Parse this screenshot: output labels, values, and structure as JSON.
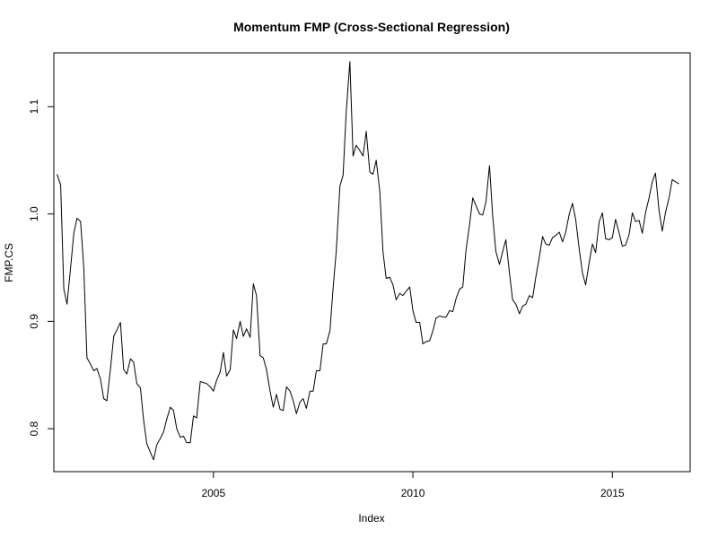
{
  "chart_data": {
    "type": "line",
    "title": "Momentum FMP (Cross-Sectional Regression)",
    "xlabel": "Index",
    "ylabel": "FMP.CS",
    "xlim": [
      2001.0,
      2016.95
    ],
    "ylim": [
      0.76,
      1.15
    ],
    "x_ticks": [
      2005,
      2010,
      2015
    ],
    "x_tick_labels": [
      "2005",
      "2010",
      "2015"
    ],
    "y_ticks": [
      0.8,
      0.9,
      1.0,
      1.1
    ],
    "y_tick_labels": [
      "0.8",
      "0.9",
      "1.0",
      "1.1"
    ],
    "grid": false,
    "legend": "none",
    "line_color": "#000000",
    "series": [
      {
        "x": [
          2001.08,
          2001.17,
          2001.25,
          2001.33,
          2001.42,
          2001.5,
          2001.58,
          2001.67,
          2001.75,
          2001.83,
          2001.92,
          2002.0,
          2002.08,
          2002.17,
          2002.25,
          2002.33,
          2002.42,
          2002.5,
          2002.58,
          2002.67,
          2002.75,
          2002.83,
          2002.92,
          2003.0,
          2003.08,
          2003.17,
          2003.25,
          2003.33,
          2003.42,
          2003.5,
          2003.58,
          2003.67,
          2003.75,
          2003.83,
          2003.92,
          2004.0,
          2004.08,
          2004.17,
          2004.25,
          2004.33,
          2004.42,
          2004.5,
          2004.58,
          2004.67,
          2004.75,
          2004.83,
          2004.92,
          2005.0,
          2005.08,
          2005.17,
          2005.25,
          2005.33,
          2005.42,
          2005.5,
          2005.58,
          2005.67,
          2005.75,
          2005.83,
          2005.92,
          2006.0,
          2006.08,
          2006.17,
          2006.25,
          2006.33,
          2006.42,
          2006.5,
          2006.58,
          2006.67,
          2006.75,
          2006.83,
          2006.92,
          2007.0,
          2007.08,
          2007.17,
          2007.25,
          2007.33,
          2007.42,
          2007.5,
          2007.58,
          2007.67,
          2007.75,
          2007.83,
          2007.92,
          2008.0,
          2008.08,
          2008.17,
          2008.25,
          2008.33,
          2008.42,
          2008.5,
          2008.58,
          2008.67,
          2008.75,
          2008.83,
          2008.92,
          2009.0,
          2009.08,
          2009.17,
          2009.25,
          2009.33,
          2009.42,
          2009.5,
          2009.58,
          2009.67,
          2009.75,
          2009.83,
          2009.92,
          2010.0,
          2010.08,
          2010.17,
          2010.25,
          2010.33,
          2010.42,
          2010.5,
          2010.58,
          2010.67,
          2010.75,
          2010.83,
          2010.92,
          2011.0,
          2011.08,
          2011.17,
          2011.25,
          2011.33,
          2011.42,
          2011.5,
          2011.58,
          2011.67,
          2011.75,
          2011.83,
          2011.92,
          2012.0,
          2012.08,
          2012.17,
          2012.25,
          2012.33,
          2012.42,
          2012.5,
          2012.58,
          2012.67,
          2012.75,
          2012.83,
          2012.92,
          2013.0,
          2013.08,
          2013.17,
          2013.25,
          2013.33,
          2013.42,
          2013.5,
          2013.58,
          2013.67,
          2013.75,
          2013.83,
          2013.92,
          2014.0,
          2014.08,
          2014.17,
          2014.25,
          2014.33,
          2014.42,
          2014.5,
          2014.58,
          2014.67,
          2014.75,
          2014.83,
          2014.92,
          2015.0,
          2015.08,
          2015.17,
          2015.25,
          2015.33,
          2015.42,
          2015.5,
          2015.58,
          2015.67,
          2015.75,
          2015.83,
          2015.92,
          2016.0,
          2016.08,
          2016.17,
          2016.25,
          2016.33,
          2016.42,
          2016.5,
          2016.58,
          2016.67
        ],
        "values": [
          1.037,
          1.027,
          0.93,
          0.916,
          0.95,
          0.982,
          0.996,
          0.993,
          0.95,
          0.866,
          0.86,
          0.854,
          0.856,
          0.846,
          0.828,
          0.826,
          0.856,
          0.886,
          0.892,
          0.899,
          0.855,
          0.851,
          0.865,
          0.862,
          0.842,
          0.838,
          0.808,
          0.786,
          0.778,
          0.771,
          0.785,
          0.791,
          0.797,
          0.809,
          0.82,
          0.817,
          0.8,
          0.792,
          0.793,
          0.787,
          0.787,
          0.812,
          0.81,
          0.844,
          0.843,
          0.842,
          0.839,
          0.835,
          0.845,
          0.853,
          0.871,
          0.849,
          0.855,
          0.892,
          0.884,
          0.9,
          0.886,
          0.893,
          0.885,
          0.935,
          0.924,
          0.868,
          0.866,
          0.855,
          0.835,
          0.82,
          0.832,
          0.818,
          0.817,
          0.839,
          0.835,
          0.826,
          0.814,
          0.825,
          0.828,
          0.819,
          0.835,
          0.835,
          0.854,
          0.854,
          0.879,
          0.879,
          0.891,
          0.931,
          0.966,
          1.026,
          1.036,
          1.096,
          1.142,
          1.054,
          1.064,
          1.059,
          1.054,
          1.077,
          1.039,
          1.037,
          1.05,
          1.021,
          0.965,
          0.94,
          0.941,
          0.934,
          0.92,
          0.926,
          0.924,
          0.928,
          0.932,
          0.91,
          0.899,
          0.899,
          0.879,
          0.881,
          0.882,
          0.891,
          0.903,
          0.905,
          0.904,
          0.904,
          0.91,
          0.909,
          0.921,
          0.93,
          0.932,
          0.966,
          0.99,
          1.015,
          1.008,
          1.0,
          0.999,
          1.011,
          1.045,
          0.998,
          0.965,
          0.953,
          0.965,
          0.976,
          0.945,
          0.92,
          0.916,
          0.907,
          0.914,
          0.916,
          0.924,
          0.922,
          0.941,
          0.96,
          0.979,
          0.972,
          0.971,
          0.978,
          0.98,
          0.983,
          0.974,
          0.983,
          1.0,
          1.01,
          0.995,
          0.967,
          0.945,
          0.934,
          0.955,
          0.972,
          0.964,
          0.993,
          1.001,
          0.977,
          0.976,
          0.978,
          0.995,
          0.982,
          0.97,
          0.971,
          0.981,
          1.001,
          0.993,
          0.994,
          0.982,
          1.001,
          1.015,
          1.03,
          1.038,
          1.003,
          0.984,
          1.001,
          1.015,
          1.032,
          1.03,
          1.028
        ]
      }
    ]
  }
}
